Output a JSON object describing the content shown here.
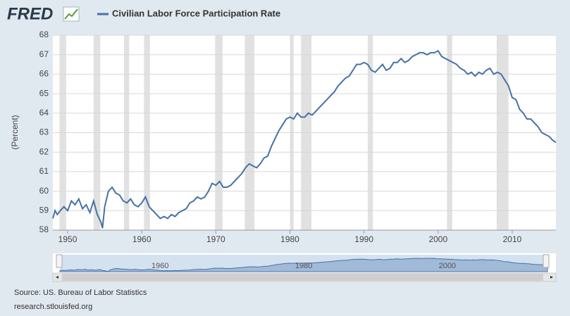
{
  "logo": "FRED",
  "chart_data": {
    "type": "line",
    "y_label": "(Percent)",
    "xlim": [
      1948,
      2015.9
    ],
    "ylim": [
      58,
      68
    ],
    "xticks": [
      1950,
      1960,
      1970,
      1980,
      1990,
      2000,
      2010
    ],
    "yticks": [
      58,
      59,
      60,
      61,
      62,
      63,
      64,
      65,
      66,
      67,
      68
    ],
    "grid": true,
    "recessions": [
      [
        1948.9,
        1949.8
      ],
      [
        1953.5,
        1954.4
      ],
      [
        1957.6,
        1958.3
      ],
      [
        1960.3,
        1961.1
      ],
      [
        1969.9,
        1970.9
      ],
      [
        1973.9,
        1975.2
      ],
      [
        1980.0,
        1980.5
      ],
      [
        1981.5,
        1982.9
      ],
      [
        1990.5,
        1991.2
      ],
      [
        2001.2,
        2001.9
      ],
      [
        2007.9,
        2009.5
      ]
    ],
    "x": [
      1948.0,
      1948.3,
      1948.6,
      1949.0,
      1949.5,
      1950.0,
      1950.5,
      1951.0,
      1951.5,
      1952.0,
      1952.5,
      1953.0,
      1953.5,
      1954.0,
      1954.5,
      1954.7,
      1955.0,
      1955.5,
      1956.0,
      1956.5,
      1957.0,
      1957.5,
      1958.0,
      1958.5,
      1959.0,
      1959.5,
      1960.0,
      1960.5,
      1961.0,
      1961.5,
      1962.0,
      1962.5,
      1963.0,
      1963.5,
      1964.0,
      1964.5,
      1965.0,
      1965.5,
      1966.0,
      1966.5,
      1967.0,
      1967.5,
      1968.0,
      1968.5,
      1969.0,
      1969.5,
      1970.0,
      1970.5,
      1971.0,
      1971.5,
      1972.0,
      1972.5,
      1973.0,
      1973.5,
      1974.0,
      1974.5,
      1975.0,
      1975.5,
      1976.0,
      1976.5,
      1977.0,
      1977.5,
      1978.0,
      1978.5,
      1979.0,
      1979.5,
      1980.0,
      1980.5,
      1981.0,
      1981.5,
      1982.0,
      1982.5,
      1983.0,
      1983.5,
      1984.0,
      1984.5,
      1985.0,
      1985.5,
      1986.0,
      1986.5,
      1987.0,
      1987.5,
      1988.0,
      1988.5,
      1989.0,
      1989.5,
      1990.0,
      1990.5,
      1991.0,
      1991.5,
      1992.0,
      1992.5,
      1993.0,
      1993.5,
      1994.0,
      1994.5,
      1995.0,
      1995.5,
      1996.0,
      1996.5,
      1997.0,
      1997.5,
      1998.0,
      1998.5,
      1999.0,
      1999.5,
      2000.0,
      2000.5,
      2001.0,
      2001.5,
      2002.0,
      2002.5,
      2003.0,
      2003.5,
      2004.0,
      2004.5,
      2005.0,
      2005.5,
      2006.0,
      2006.5,
      2007.0,
      2007.5,
      2008.0,
      2008.5,
      2009.0,
      2009.5,
      2010.0,
      2010.5,
      2011.0,
      2011.5,
      2012.0,
      2012.5,
      2013.0,
      2013.5,
      2014.0,
      2014.5,
      2015.0,
      2015.5,
      2015.9
    ],
    "series": [
      {
        "name": "Civilian Labor Force Participation Rate",
        "color": "#4572a7",
        "values": [
          58.6,
          59.0,
          58.8,
          59.0,
          59.2,
          59.0,
          59.5,
          59.3,
          59.6,
          59.1,
          59.3,
          58.9,
          59.5,
          58.8,
          58.4,
          58.1,
          59.2,
          60.0,
          60.2,
          59.9,
          59.8,
          59.5,
          59.4,
          59.6,
          59.3,
          59.2,
          59.4,
          59.7,
          59.2,
          59.0,
          58.8,
          58.6,
          58.7,
          58.6,
          58.8,
          58.7,
          58.9,
          59.0,
          59.1,
          59.4,
          59.5,
          59.7,
          59.6,
          59.7,
          60.0,
          60.4,
          60.3,
          60.5,
          60.2,
          60.2,
          60.3,
          60.5,
          60.7,
          60.9,
          61.2,
          61.4,
          61.3,
          61.2,
          61.4,
          61.7,
          61.8,
          62.3,
          62.7,
          63.1,
          63.4,
          63.7,
          63.8,
          63.7,
          64.0,
          63.8,
          63.8,
          64.0,
          63.9,
          64.1,
          64.3,
          64.5,
          64.7,
          64.9,
          65.1,
          65.4,
          65.6,
          65.8,
          65.9,
          66.2,
          66.5,
          66.5,
          66.6,
          66.5,
          66.2,
          66.1,
          66.3,
          66.5,
          66.2,
          66.3,
          66.6,
          66.6,
          66.8,
          66.6,
          66.7,
          66.9,
          67.0,
          67.1,
          67.1,
          67.0,
          67.1,
          67.1,
          67.2,
          66.9,
          66.8,
          66.7,
          66.6,
          66.5,
          66.3,
          66.2,
          66.0,
          66.1,
          65.9,
          66.1,
          66.0,
          66.2,
          66.3,
          66.0,
          66.1,
          66.0,
          65.7,
          65.4,
          64.8,
          64.7,
          64.2,
          64.0,
          63.7,
          63.7,
          63.5,
          63.3,
          63.0,
          62.9,
          62.8,
          62.6,
          62.5
        ]
      }
    ],
    "navigator_ticks": [
      1960,
      1980,
      2000
    ]
  },
  "source": "Source: US. Bureau of Labor Statistics",
  "url": "research.stlouisfed.org"
}
